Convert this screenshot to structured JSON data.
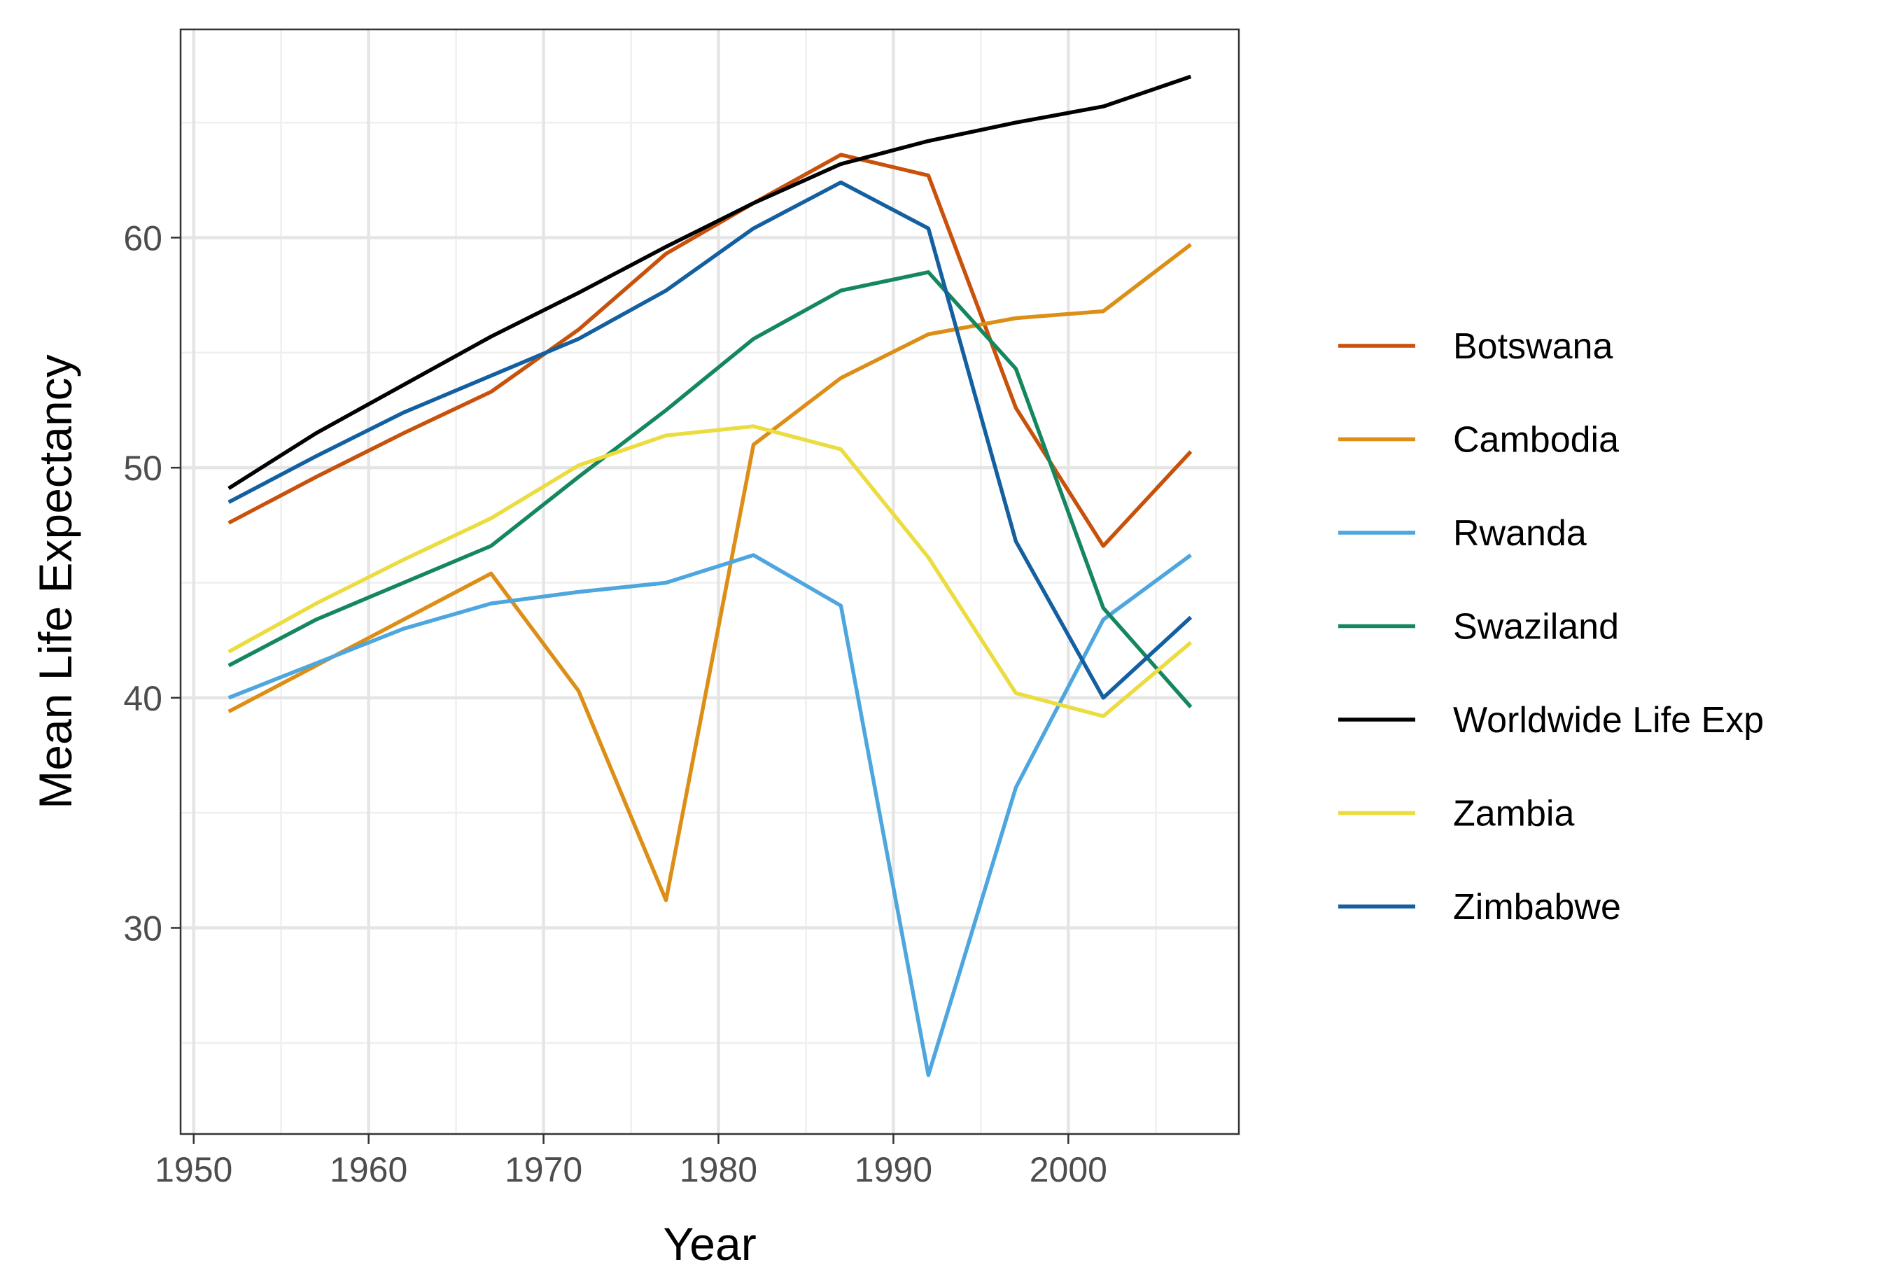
{
  "chart_data": {
    "type": "line",
    "title": "",
    "xlabel": "Year",
    "ylabel": "Mean Life Expectancy",
    "xlim": [
      1949.25,
      2009.75
    ],
    "ylim": [
      21.04,
      69.05
    ],
    "x_ticks": [
      1950,
      1960,
      1970,
      1980,
      1990,
      2000
    ],
    "y_ticks": [
      30,
      40,
      50,
      60
    ],
    "grid": true,
    "legend_position": "right",
    "x": [
      1952,
      1957,
      1962,
      1967,
      1972,
      1977,
      1982,
      1987,
      1992,
      1997,
      2002,
      2007
    ],
    "series": [
      {
        "name": "Botswana",
        "color": "#C8510C",
        "values": [
          47.6,
          49.6,
          51.5,
          53.3,
          56.0,
          59.3,
          61.5,
          63.6,
          62.7,
          52.6,
          46.6,
          50.7
        ]
      },
      {
        "name": "Cambodia",
        "color": "#DC8E17",
        "values": [
          39.4,
          41.4,
          43.4,
          45.4,
          40.3,
          31.2,
          51.0,
          53.9,
          55.8,
          56.5,
          56.8,
          59.7
        ]
      },
      {
        "name": "Rwanda",
        "color": "#4EA6DE",
        "values": [
          40.0,
          41.5,
          43.0,
          44.1,
          44.6,
          45.0,
          46.2,
          44.0,
          23.6,
          36.1,
          43.4,
          46.2
        ]
      },
      {
        "name": "Swaziland",
        "color": "#15875F",
        "values": [
          41.4,
          43.4,
          45.0,
          46.6,
          49.6,
          52.5,
          55.6,
          57.7,
          58.5,
          54.3,
          43.9,
          39.6
        ]
      },
      {
        "name": "Worldwide Life Exp",
        "color": "#000000",
        "values": [
          49.1,
          51.5,
          53.6,
          55.7,
          57.6,
          59.6,
          61.5,
          63.2,
          64.2,
          65.0,
          65.7,
          67.0
        ]
      },
      {
        "name": "Zambia",
        "color": "#EBDC3F",
        "values": [
          42.0,
          44.1,
          46.0,
          47.8,
          50.1,
          51.4,
          51.8,
          50.8,
          46.1,
          40.2,
          39.2,
          42.4
        ]
      },
      {
        "name": "Zimbabwe",
        "color": "#135FA0",
        "values": [
          48.5,
          50.5,
          52.4,
          54.0,
          55.6,
          57.7,
          60.4,
          62.4,
          60.4,
          46.8,
          40.0,
          43.5
        ]
      }
    ]
  }
}
